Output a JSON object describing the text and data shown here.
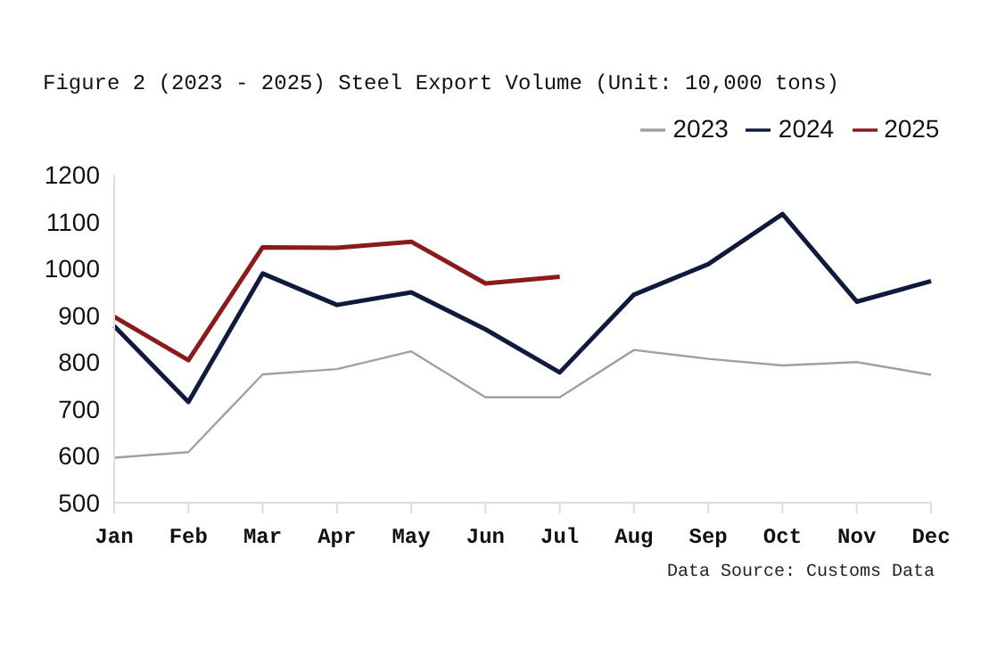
{
  "chart_data": {
    "type": "line",
    "title": "Figure 2 (2023 - 2025) Steel Export Volume (Unit: 10,000 tons)",
    "categories": [
      "Jan",
      "Feb",
      "Mar",
      "Apr",
      "May",
      "Jun",
      "Jul",
      "Aug",
      "Sep",
      "Oct",
      "Nov",
      "Dec"
    ],
    "series": [
      {
        "name": "2023",
        "color": "#a0a0a0",
        "values": [
          596,
          608,
          774,
          785,
          823,
          725,
          725,
          826,
          807,
          793,
          800,
          773
        ]
      },
      {
        "name": "2024",
        "color": "#0f1a3c",
        "values": [
          877,
          715,
          989,
          922,
          949,
          870,
          778,
          944,
          1009,
          1116,
          929,
          973
        ]
      },
      {
        "name": "2025",
        "color": "#8b1a1a",
        "values": [
          897,
          804,
          1045,
          1044,
          1057,
          968,
          982,
          null,
          null,
          null,
          null,
          null
        ]
      }
    ],
    "ylim": [
      500,
      1200
    ],
    "yticks": [
      500,
      600,
      700,
      800,
      900,
      1000,
      1100,
      1200
    ],
    "grid": false,
    "legend": "top",
    "marker": "none",
    "line_style": "solid",
    "annotations": [
      "Data Source: Customs Data"
    ]
  }
}
